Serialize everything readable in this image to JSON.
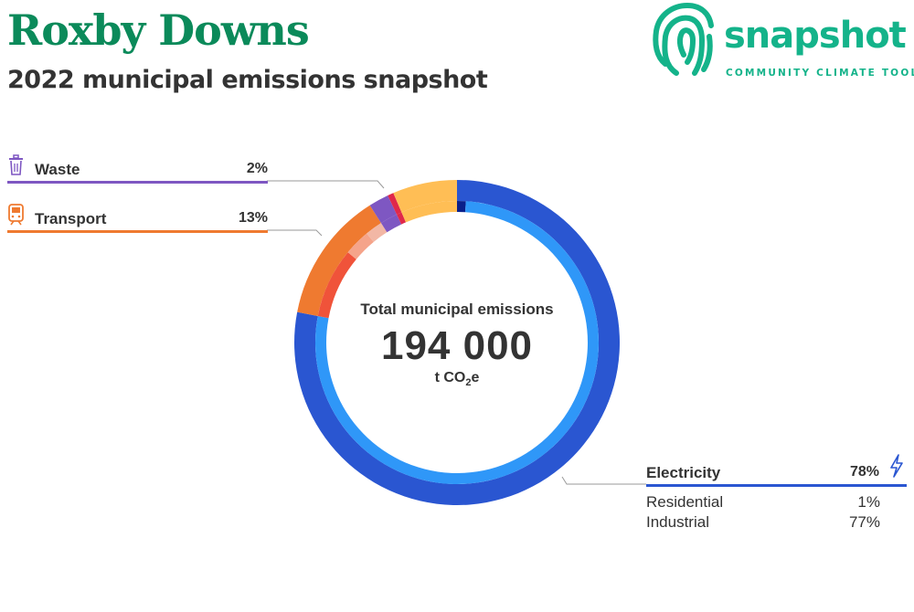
{
  "header": {
    "title": "Roxby Downs",
    "subtitle": "2022 municipal emissions snapshot"
  },
  "logo": {
    "word": "snapshot",
    "tagline": "COMMUNITY CLIMATE TOOL"
  },
  "center": {
    "label": "Total municipal emissions",
    "value": "194 000",
    "unit_prefix": "t CO",
    "unit_sub": "2",
    "unit_suffix": "e"
  },
  "categories": {
    "waste": {
      "name": "Waste",
      "pct": "2%",
      "color": "#7e57c2",
      "icon": "trash-icon"
    },
    "transport": {
      "name": "Transport",
      "pct": "13%",
      "color": "#ef7a30",
      "icon": "train-icon"
    },
    "electricity": {
      "name": "Electricity",
      "pct": "78%",
      "color": "#2a56d1",
      "icon": "lightning-icon",
      "sub": [
        {
          "name": "Residential",
          "pct": "1%"
        },
        {
          "name": "Industrial",
          "pct": "77%"
        }
      ]
    }
  },
  "chart_data": {
    "type": "pie",
    "style": "donut",
    "outer_ring": [
      {
        "label": "Electricity",
        "value": 78,
        "color": "#2a56d1"
      },
      {
        "label": "Transport",
        "value": 13,
        "color": "#ef7a30"
      },
      {
        "label": "Waste",
        "value": 2,
        "color": "#7e57c2"
      },
      {
        "label": "",
        "value": 0.6,
        "color": "#e0284a"
      },
      {
        "label": "",
        "value": 6.4,
        "color": "#ffbe55"
      }
    ],
    "inner_ring": [
      {
        "label": "Residential",
        "value": 1,
        "color": "#0a1f8a"
      },
      {
        "label": "Industrial",
        "value": 77,
        "color": "#2f97f8"
      },
      {
        "label": "",
        "value": 8,
        "color": "#f0533a"
      },
      {
        "label": "",
        "value": 3,
        "color": "#f5a48a"
      },
      {
        "label": "",
        "value": 2,
        "color": "#f2b7a5"
      },
      {
        "label": "",
        "value": 2,
        "color": "#7e57c2"
      },
      {
        "label": "",
        "value": 0.6,
        "color": "#e0284a"
      },
      {
        "label": "",
        "value": 6.4,
        "color": "#ffbe55"
      }
    ]
  }
}
